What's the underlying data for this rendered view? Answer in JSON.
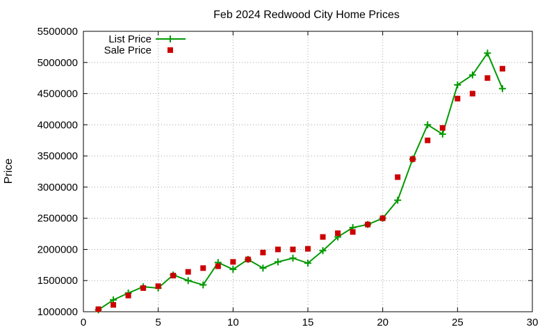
{
  "chart_data": {
    "type": "line",
    "title": "Feb 2024 Redwood City Home Prices",
    "xlabel": "",
    "ylabel": "Price",
    "xlim": [
      0,
      30
    ],
    "ylim": [
      1000000,
      5500000
    ],
    "xticks": [
      0,
      5,
      10,
      15,
      20,
      25,
      30
    ],
    "yticks": [
      1000000,
      1500000,
      2000000,
      2500000,
      3000000,
      3500000,
      4000000,
      4500000,
      5000000,
      5500000
    ],
    "grid": true,
    "legend_position": "top-left",
    "series": [
      {
        "name": "List Price",
        "style": "line+plus",
        "color": "#009900",
        "x": [
          1,
          2,
          3,
          4,
          5,
          6,
          7,
          8,
          9,
          10,
          11,
          12,
          13,
          14,
          15,
          16,
          17,
          18,
          19,
          20,
          21,
          22,
          23,
          24,
          25,
          26,
          27,
          28
        ],
        "values": [
          1030000,
          1190000,
          1300000,
          1400000,
          1380000,
          1590000,
          1500000,
          1430000,
          1790000,
          1680000,
          1840000,
          1700000,
          1800000,
          1860000,
          1780000,
          1980000,
          2200000,
          2350000,
          2400000,
          2500000,
          2790000,
          3450000,
          4000000,
          3850000,
          4640000,
          4800000,
          5150000,
          4580000
        ]
      },
      {
        "name": "Sale Price",
        "style": "square",
        "color": "#cc0000",
        "x": [
          1,
          2,
          3,
          4,
          5,
          6,
          7,
          8,
          9,
          10,
          11,
          12,
          13,
          14,
          15,
          16,
          17,
          18,
          19,
          20,
          21,
          22,
          23,
          24,
          25,
          26,
          27,
          28
        ],
        "values": [
          1040000,
          1110000,
          1260000,
          1380000,
          1410000,
          1580000,
          1640000,
          1700000,
          1730000,
          1800000,
          1840000,
          1950000,
          2000000,
          2000000,
          2010000,
          2200000,
          2260000,
          2280000,
          2400000,
          2500000,
          3160000,
          3450000,
          3750000,
          3950000,
          4420000,
          4500000,
          4750000,
          4900000
        ]
      }
    ]
  }
}
